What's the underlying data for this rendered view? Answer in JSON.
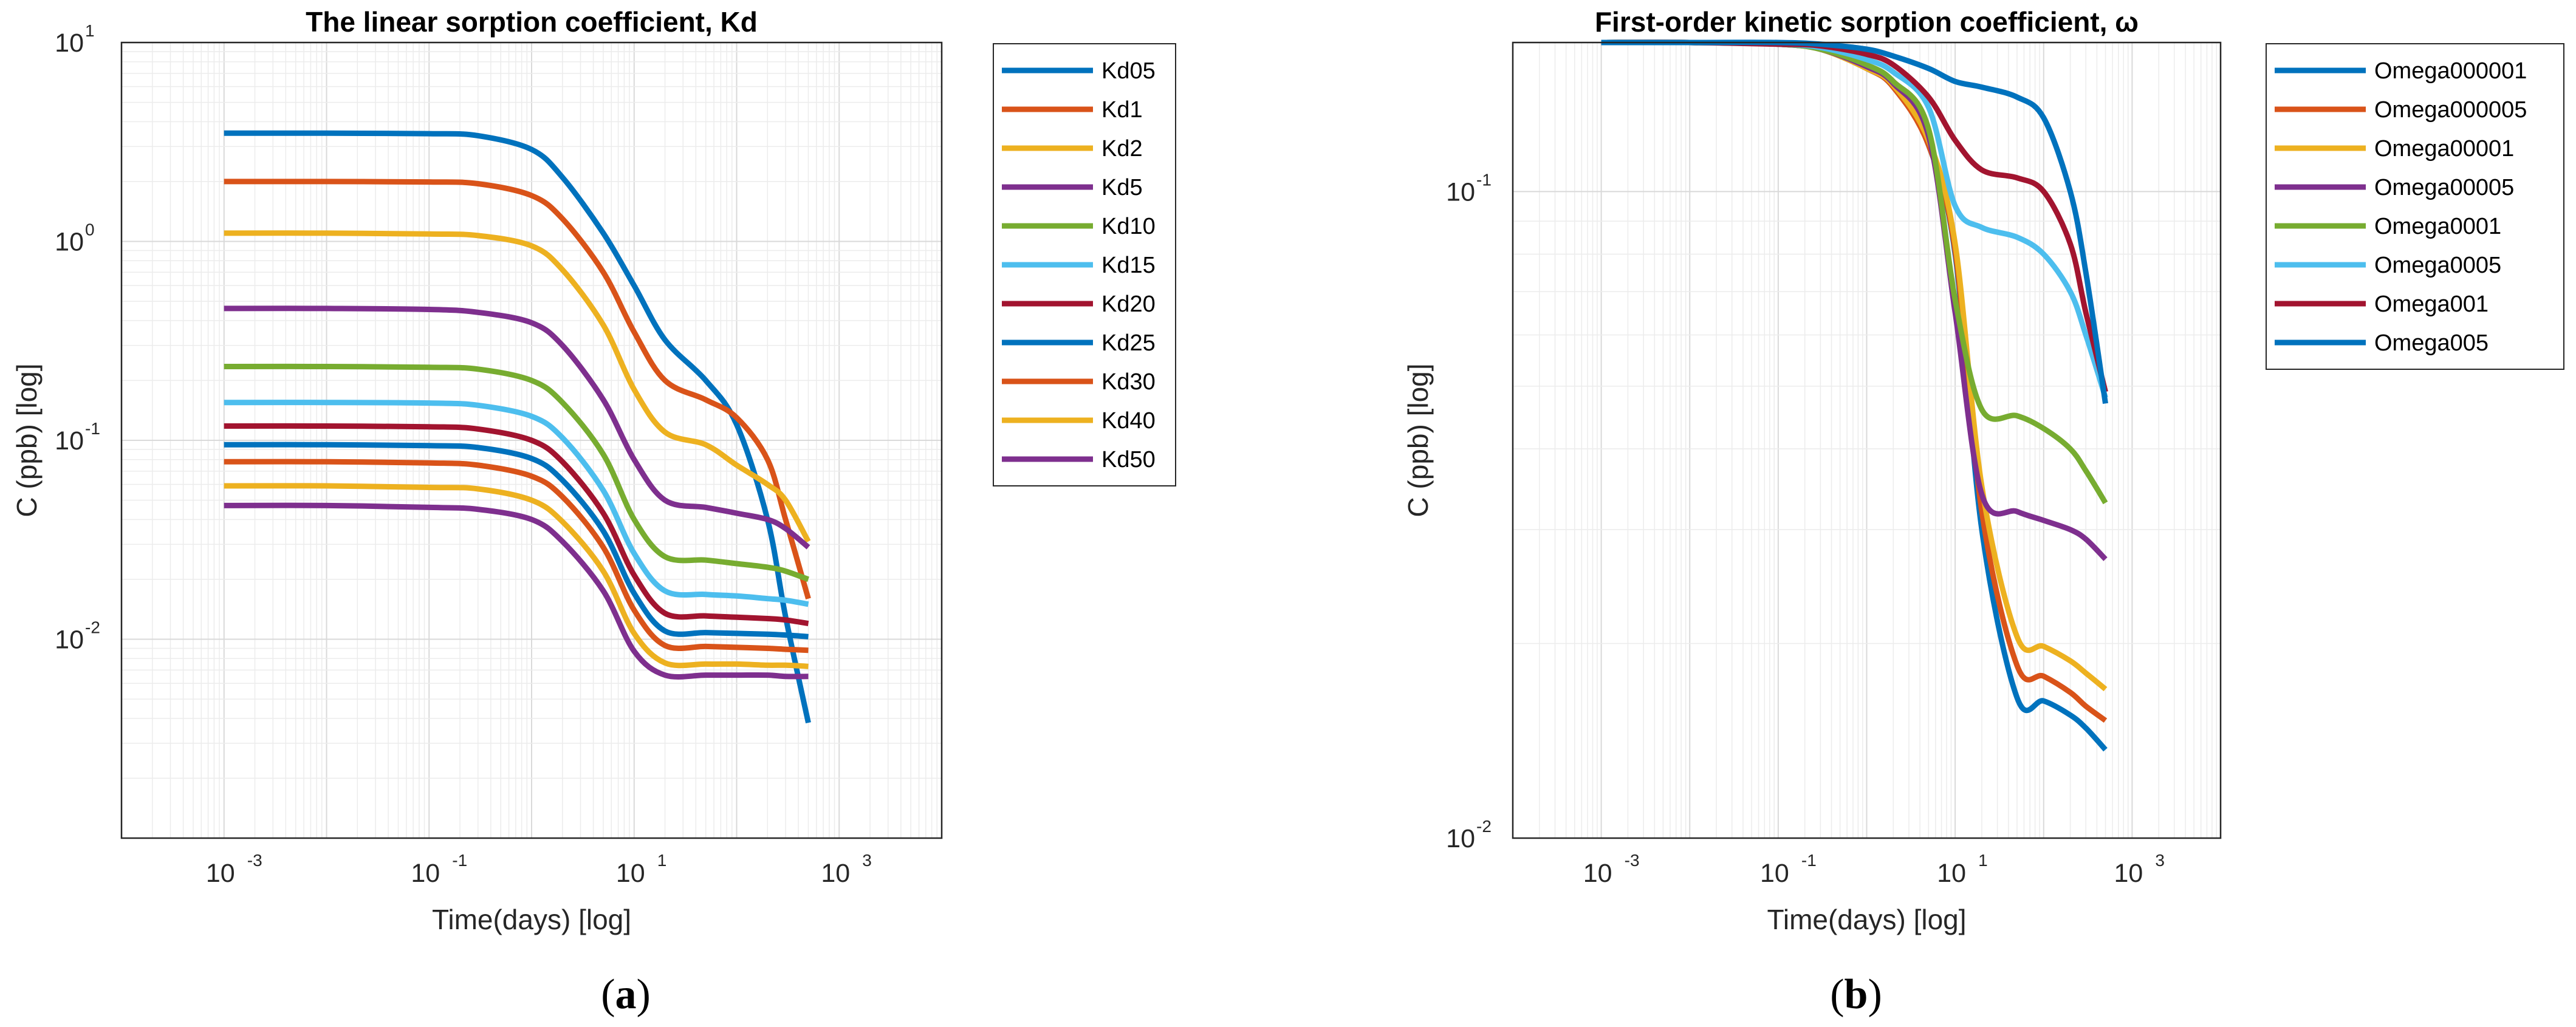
{
  "chart_data": [
    {
      "type": "line",
      "title": "The linear sorption coefficient, Kd",
      "xlabel": "Time(days) [log]",
      "ylabel": "C (ppb) [log]",
      "xscale": "log",
      "yscale": "log",
      "xlim": [
        0.0001,
        10000
      ],
      "ylim": [
        0.001,
        10
      ],
      "grid": true,
      "legend_position": "outside-right-top",
      "caption_letter": "a",
      "x": [
        0.001,
        0.01,
        0.1,
        0.3,
        1,
        2,
        5,
        10,
        20,
        50,
        100,
        200,
        300,
        500
      ],
      "series": [
        {
          "name": "Kd05",
          "color": "#0072BD",
          "values": [
            3.5,
            3.5,
            3.48,
            3.4,
            2.9,
            2.1,
            1.1,
            0.6,
            0.32,
            0.2,
            0.12,
            0.04,
            0.013,
            0.0038
          ]
        },
        {
          "name": "Kd1",
          "color": "#D95319",
          "values": [
            2.0,
            2.0,
            1.99,
            1.95,
            1.7,
            1.3,
            0.7,
            0.35,
            0.2,
            0.16,
            0.13,
            0.08,
            0.04,
            0.016
          ]
        },
        {
          "name": "Kd2",
          "color": "#EDB120",
          "values": [
            1.1,
            1.1,
            1.09,
            1.07,
            0.95,
            0.72,
            0.38,
            0.18,
            0.11,
            0.095,
            0.075,
            0.06,
            0.05,
            0.031
          ]
        },
        {
          "name": "Kd5",
          "color": "#7E2F8E",
          "values": [
            0.46,
            0.46,
            0.455,
            0.44,
            0.39,
            0.3,
            0.16,
            0.08,
            0.05,
            0.046,
            0.043,
            0.04,
            0.036,
            0.029
          ]
        },
        {
          "name": "Kd10",
          "color": "#77AC30",
          "values": [
            0.235,
            0.235,
            0.233,
            0.228,
            0.2,
            0.155,
            0.085,
            0.04,
            0.026,
            0.025,
            0.024,
            0.023,
            0.022,
            0.02
          ]
        },
        {
          "name": "Kd15",
          "color": "#4DBEEE",
          "values": [
            0.155,
            0.155,
            0.154,
            0.15,
            0.132,
            0.103,
            0.056,
            0.027,
            0.0175,
            0.0168,
            0.0165,
            0.016,
            0.0157,
            0.015
          ]
        },
        {
          "name": "Kd20",
          "color": "#A2142F",
          "values": [
            0.118,
            0.118,
            0.117,
            0.114,
            0.1,
            0.078,
            0.043,
            0.021,
            0.0135,
            0.0131,
            0.0129,
            0.0127,
            0.0125,
            0.012
          ]
        },
        {
          "name": "Kd25",
          "color": "#0072BD",
          "values": [
            0.095,
            0.095,
            0.094,
            0.092,
            0.081,
            0.063,
            0.035,
            0.017,
            0.011,
            0.0108,
            0.0107,
            0.0106,
            0.0105,
            0.0103
          ]
        },
        {
          "name": "Kd30",
          "color": "#D95319",
          "values": [
            0.078,
            0.078,
            0.077,
            0.075,
            0.066,
            0.052,
            0.029,
            0.014,
            0.0093,
            0.0092,
            0.0091,
            0.009,
            0.0089,
            0.0088
          ]
        },
        {
          "name": "Kd40",
          "color": "#EDB120",
          "values": [
            0.059,
            0.059,
            0.058,
            0.057,
            0.05,
            0.039,
            0.022,
            0.0107,
            0.0076,
            0.0075,
            0.0075,
            0.0074,
            0.0074,
            0.0073
          ]
        },
        {
          "name": "Kd50",
          "color": "#7E2F8E",
          "values": [
            0.047,
            0.047,
            0.046,
            0.045,
            0.04,
            0.031,
            0.0175,
            0.0087,
            0.0066,
            0.0066,
            0.0066,
            0.0066,
            0.0065,
            0.0065
          ]
        }
      ]
    },
    {
      "type": "line",
      "title": "First-order kinetic sorption coefficient, ω",
      "xlabel": "Time(days) [log]",
      "ylabel": "C (ppb) [log]",
      "xscale": "log",
      "yscale": "log",
      "xlim": [
        0.0001,
        10000
      ],
      "ylim": [
        0.01,
        0.17
      ],
      "yticks": [
        0.01,
        0.1
      ],
      "grid": true,
      "legend_position": "outside-right-top",
      "caption_letter": "b",
      "x": [
        0.001,
        0.01,
        0.1,
        0.3,
        1,
        2,
        5,
        10,
        20,
        50,
        100,
        200,
        300,
        500
      ],
      "series": [
        {
          "name": "Omega000001",
          "color": "#0072BD",
          "values": [
            0.17,
            0.17,
            0.169,
            0.166,
            0.155,
            0.145,
            0.118,
            0.08,
            0.03,
            0.0165,
            0.0163,
            0.0155,
            0.0148,
            0.0137
          ]
        },
        {
          "name": "Omega000005",
          "color": "#D95319",
          "values": [
            0.17,
            0.17,
            0.169,
            0.166,
            0.155,
            0.145,
            0.118,
            0.081,
            0.032,
            0.0185,
            0.0178,
            0.0168,
            0.016,
            0.0152
          ]
        },
        {
          "name": "Omega00001",
          "color": "#EDB120",
          "values": [
            0.17,
            0.17,
            0.169,
            0.166,
            0.155,
            0.146,
            0.12,
            0.083,
            0.035,
            0.0205,
            0.0198,
            0.0188,
            0.018,
            0.017
          ]
        },
        {
          "name": "Omega00005",
          "color": "#7E2F8E",
          "values": [
            0.17,
            0.17,
            0.169,
            0.166,
            0.156,
            0.147,
            0.122,
            0.065,
            0.034,
            0.032,
            0.031,
            0.03,
            0.029,
            0.027
          ]
        },
        {
          "name": "Omega0001",
          "color": "#77AC30",
          "values": [
            0.17,
            0.17,
            0.169,
            0.166,
            0.157,
            0.148,
            0.125,
            0.068,
            0.046,
            0.045,
            0.043,
            0.04,
            0.037,
            0.033
          ]
        },
        {
          "name": "Omega0005",
          "color": "#4DBEEE",
          "values": [
            0.17,
            0.17,
            0.169,
            0.167,
            0.16,
            0.153,
            0.135,
            0.095,
            0.088,
            0.085,
            0.08,
            0.07,
            0.06,
            0.048
          ]
        },
        {
          "name": "Omega001",
          "color": "#A2142F",
          "values": [
            0.17,
            0.17,
            0.169,
            0.168,
            0.163,
            0.157,
            0.14,
            0.12,
            0.108,
            0.105,
            0.1,
            0.083,
            0.065,
            0.049
          ]
        },
        {
          "name": "Omega005",
          "color": "#0072BD",
          "values": [
            0.17,
            0.17,
            0.17,
            0.169,
            0.166,
            0.162,
            0.155,
            0.148,
            0.145,
            0.14,
            0.13,
            0.1,
            0.075,
            0.047
          ]
        }
      ]
    }
  ]
}
